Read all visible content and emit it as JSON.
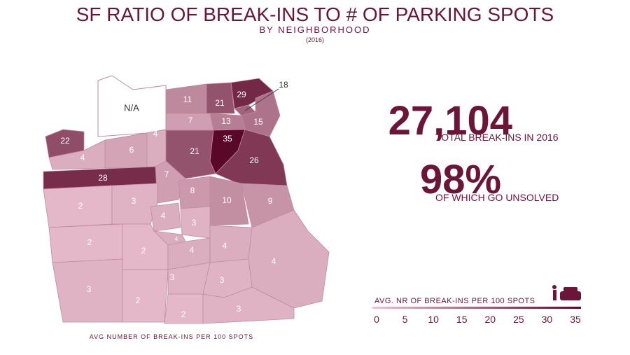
{
  "header": {
    "title": "SF RATIO OF BREAK-INS TO # OF PARKING SPOTS",
    "subtitle": "BY NEIGHBORHOOD",
    "year": "(2016)"
  },
  "stats": {
    "total": "27,104",
    "total_label": "TOTAL BREAK-INS IN 2016",
    "unsolved": "98%",
    "unsolved_label": "OF WHICH GO UNSOLVED"
  },
  "map": {
    "caption": "AVG NUMBER OF BREAK-INS PER 100 SPOTS",
    "na_label": "N/A",
    "regions": [
      29,
      18,
      11,
      21,
      7,
      13,
      15,
      22,
      4,
      6,
      4,
      21,
      35,
      26,
      28,
      7,
      8,
      10,
      9,
      2,
      3,
      4,
      3,
      2,
      4,
      2,
      4,
      4,
      4,
      3,
      2,
      3,
      3,
      2,
      3
    ]
  },
  "legend": {
    "title": "AVG. NR OF BREAK-INS PER 100 SPOTS",
    "ticks": [
      0,
      5,
      10,
      15,
      20,
      25,
      30,
      35
    ],
    "colors": [
      "#ecc3d3",
      "#5a0828"
    ]
  }
}
